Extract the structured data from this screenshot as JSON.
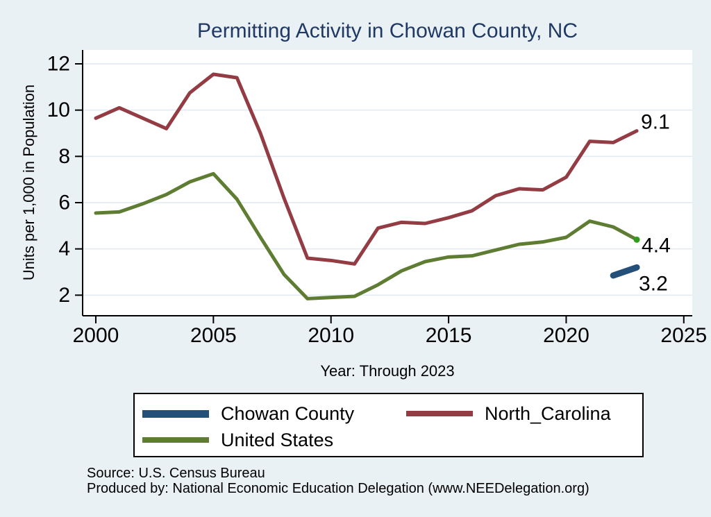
{
  "figure": {
    "source_lines": [
      "Source: U.S. Census Bureau",
      "Produced by: National Economic Education Delegation (www.NEEDelegation.org)"
    ]
  },
  "colors": {
    "background": "#eaf1f4",
    "plot_background": "#ffffff",
    "gridline": "#dfeaf2",
    "axis": "#000000",
    "title": "#1f3864",
    "end_marker": "#2f9c1e",
    "end_label_text": "#000000"
  },
  "chart_data": {
    "type": "line",
    "title": "Permitting Activity in Chowan County, NC",
    "xlabel": "Year: Through 2023",
    "ylabel": "Units per 1,000 in Population",
    "x": [
      2000,
      2001,
      2002,
      2003,
      2004,
      2005,
      2006,
      2007,
      2008,
      2009,
      2010,
      2011,
      2012,
      2013,
      2014,
      2015,
      2016,
      2017,
      2018,
      2019,
      2020,
      2021,
      2022,
      2023
    ],
    "xticks": [
      2000,
      2005,
      2010,
      2015,
      2020,
      2025
    ],
    "yticks": [
      2,
      4,
      6,
      8,
      10,
      12
    ],
    "xlim": [
      1999.44,
      2025.36
    ],
    "ylim": [
      1.11,
      12.6
    ],
    "grid": "horizontal",
    "legend_position": "bottom",
    "series": [
      {
        "name": "Chowan County",
        "color": "#234f78",
        "line_width": 9,
        "end_label": "3.2",
        "end_marker": false,
        "values": [
          null,
          null,
          null,
          null,
          null,
          null,
          null,
          null,
          null,
          null,
          null,
          null,
          null,
          null,
          null,
          null,
          null,
          null,
          null,
          null,
          null,
          null,
          2.85,
          3.2
        ]
      },
      {
        "name": "North_Carolina",
        "color": "#933c44",
        "line_width": 5,
        "end_label": "9.1",
        "end_marker": false,
        "values": [
          9.65,
          10.1,
          9.65,
          9.2,
          10.75,
          11.55,
          11.4,
          9.0,
          6.2,
          3.6,
          3.5,
          3.35,
          4.9,
          5.15,
          5.1,
          5.35,
          5.65,
          6.3,
          6.6,
          6.55,
          7.1,
          8.65,
          8.6,
          9.1
        ]
      },
      {
        "name": "United States",
        "color": "#5e7d33",
        "line_width": 5,
        "end_label": "4.4",
        "end_marker": true,
        "values": [
          5.55,
          5.6,
          5.95,
          6.35,
          6.9,
          7.25,
          6.15,
          4.5,
          2.9,
          1.85,
          1.9,
          1.95,
          2.45,
          3.05,
          3.45,
          3.65,
          3.7,
          3.95,
          4.2,
          4.3,
          4.5,
          5.2,
          4.95,
          4.4
        ]
      }
    ]
  }
}
